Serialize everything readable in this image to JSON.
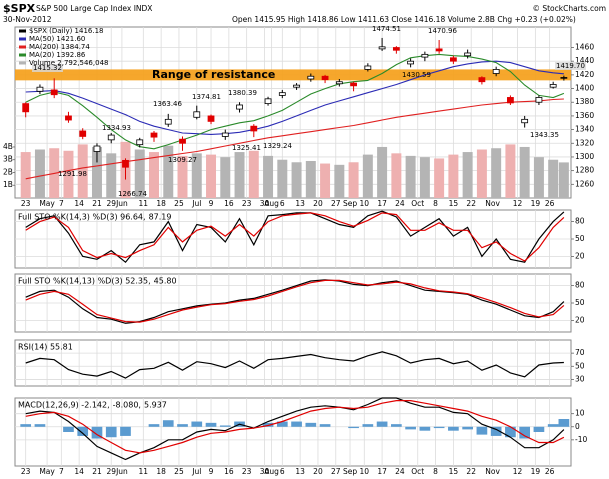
{
  "header": {
    "symbol": "$SPX",
    "name": "S&P 500 Large Cap Index INDX",
    "date": "30-Nov-2012",
    "quote": "Open 1415.95 High 1418.86 Low 1411.63 Close 1416.18 Volume 2.8B Chg +0.23 (+0.02%)",
    "credit": "© StockCharts.com"
  },
  "chart_data": [
    {
      "type": "candlestick",
      "x": [
        0,
        4,
        8,
        12,
        16,
        20,
        24,
        28,
        32,
        36,
        40,
        44,
        48,
        52,
        56,
        60,
        64,
        68,
        72,
        76,
        80,
        84,
        88,
        92,
        96,
        100,
        104,
        108,
        112,
        116,
        120,
        124,
        128,
        132,
        136,
        140,
        144,
        148,
        151
      ],
      "xlim": [
        -3,
        153
      ],
      "xticks": [
        {
          "value": 0,
          "label": "23"
        },
        {
          "value": 6,
          "label": "May"
        },
        {
          "value": 10,
          "label": "7"
        },
        {
          "value": 15,
          "label": "14"
        },
        {
          "value": 20,
          "label": "21"
        },
        {
          "value": 24,
          "label": "29"
        },
        {
          "value": 27,
          "label": "Jun"
        },
        {
          "value": 33,
          "label": "11"
        },
        {
          "value": 38,
          "label": "18"
        },
        {
          "value": 43,
          "label": "25"
        },
        {
          "value": 48,
          "label": "Jul"
        },
        {
          "value": 52,
          "label": "9"
        },
        {
          "value": 57,
          "label": "16"
        },
        {
          "value": 62,
          "label": "23"
        },
        {
          "value": 67,
          "label": "30"
        },
        {
          "value": 69,
          "label": "Aug"
        },
        {
          "value": 72,
          "label": "6"
        },
        {
          "value": 77,
          "label": "13"
        },
        {
          "value": 82,
          "label": "20"
        },
        {
          "value": 87,
          "label": "27"
        },
        {
          "value": 91,
          "label": "Sep"
        },
        {
          "value": 95,
          "label": "10"
        },
        {
          "value": 100,
          "label": "17"
        },
        {
          "value": 105,
          "label": "24"
        },
        {
          "value": 110,
          "label": "Oct"
        },
        {
          "value": 115,
          "label": "8"
        },
        {
          "value": 120,
          "label": "15"
        },
        {
          "value": 125,
          "label": "22"
        },
        {
          "value": 131,
          "label": "Nov"
        },
        {
          "value": 138,
          "label": "12"
        },
        {
          "value": 143,
          "label": "19"
        },
        {
          "value": 147,
          "label": "26"
        }
      ],
      "ylim": [
        1240,
        1490
      ],
      "yticks": [
        1260,
        1280,
        1300,
        1320,
        1340,
        1360,
        1380,
        1400,
        1420,
        1440,
        1460
      ],
      "price": {
        "name": "$SPX (Daily) 1416.18",
        "up_color": "#000000",
        "down_color": "#e00000",
        "open": [
          1378,
          1396,
          1398,
          1360,
          1338,
          1308,
          1325,
          1295,
          1318,
          1335,
          1348,
          1326,
          1358,
          1360,
          1330,
          1370,
          1345,
          1378,
          1390,
          1402,
          1414,
          1418,
          1407,
          1408,
          1428,
          1458,
          1460,
          1436,
          1446,
          1458,
          1445,
          1448,
          1416,
          1422,
          1387,
          1350,
          1380,
          1402,
          1415.95
        ],
        "high": [
          1380,
          1406,
          1415,
          1366,
          1342,
          1320,
          1335,
          1298,
          1328,
          1338,
          1363,
          1330,
          1375,
          1362,
          1340,
          1380,
          1348,
          1388,
          1398,
          1408,
          1422,
          1420,
          1414,
          1410,
          1437,
          1474,
          1462,
          1444,
          1454,
          1471,
          1448,
          1457,
          1418,
          1432,
          1390,
          1360,
          1390,
          1410,
          1418.86
        ],
        "low": [
          1358,
          1392,
          1386,
          1350,
          1326,
          1292,
          1320,
          1267,
          1314,
          1322,
          1344,
          1309,
          1355,
          1348,
          1325,
          1365,
          1329,
          1375,
          1386,
          1398,
          1410,
          1408,
          1403,
          1396,
          1425,
          1455,
          1451,
          1431,
          1440,
          1451,
          1436,
          1444,
          1406,
          1418,
          1376,
          1343,
          1376,
          1400,
          1411.63
        ],
        "close": [
          1366,
          1402,
          1391,
          1354,
          1330,
          1316,
          1332,
          1285,
          1325,
          1329,
          1355,
          1320,
          1366,
          1352,
          1335,
          1376,
          1338,
          1385,
          1394,
          1405,
          1418,
          1413,
          1410,
          1404,
          1433,
          1461,
          1456,
          1440,
          1450,
          1455,
          1440,
          1452,
          1410,
          1428,
          1379,
          1355,
          1387,
          1406,
          1416.18
        ]
      },
      "series": [
        {
          "name": "MA(50) 1421.60",
          "color": "#2b2bb5",
          "values": [
            1395,
            1396,
            1397,
            1393,
            1386,
            1378,
            1370,
            1362,
            1352,
            1345,
            1340,
            1335,
            1334,
            1333,
            1334,
            1336,
            1340,
            1345,
            1352,
            1360,
            1368,
            1376,
            1382,
            1388,
            1394,
            1400,
            1406,
            1413,
            1420,
            1426,
            1432,
            1436,
            1439,
            1440,
            1438,
            1432,
            1426,
            1423,
            1421.6
          ]
        },
        {
          "name": "MA(200) 1384.74",
          "color": "#e02020",
          "values": [
            1268,
            1272,
            1276,
            1280,
            1284,
            1287,
            1290,
            1293,
            1296,
            1299,
            1302,
            1305,
            1308,
            1312,
            1316,
            1320,
            1324,
            1328,
            1331,
            1334,
            1337,
            1340,
            1343,
            1346,
            1350,
            1354,
            1358,
            1361,
            1364,
            1367,
            1370,
            1373,
            1376,
            1378,
            1380,
            1381,
            1382,
            1384,
            1384.74
          ]
        },
        {
          "name": "MA(20) 1392.86",
          "color": "#2a8a2a",
          "values": [
            1380,
            1390,
            1395,
            1390,
            1375,
            1358,
            1340,
            1325,
            1315,
            1312,
            1318,
            1325,
            1332,
            1340,
            1345,
            1350,
            1353,
            1360,
            1368,
            1380,
            1392,
            1400,
            1407,
            1410,
            1412,
            1422,
            1435,
            1445,
            1448,
            1450,
            1448,
            1447,
            1443,
            1438,
            1425,
            1405,
            1390,
            1387,
            1392.86
          ]
        }
      ],
      "volume": {
        "name": "Volume 2,792,546,048",
        "color": "#b4b4b4",
        "down_color": "#eeb0b0",
        "values": [
          3.6,
          3.8,
          3.9,
          3.7,
          4.2,
          4.0,
          3.5,
          4.4,
          3.8,
          3.6,
          4.1,
          3.3,
          3.5,
          3.4,
          3.2,
          3.6,
          3.7,
          3.3,
          3.0,
          2.8,
          2.9,
          2.7,
          2.6,
          2.8,
          3.4,
          4.0,
          3.5,
          3.3,
          3.2,
          3.1,
          3.4,
          3.6,
          3.8,
          3.9,
          4.2,
          4.0,
          3.2,
          3.0,
          2.79
        ]
      },
      "volume_lim": [
        0,
        13.4
      ],
      "volume_ticks": [
        {
          "value": 1,
          "label": "1B"
        },
        {
          "value": 2,
          "label": "2B"
        },
        {
          "value": 3,
          "label": "3B"
        },
        {
          "value": 4,
          "label": "4B"
        }
      ],
      "band": {
        "label": "Range of resistance",
        "range": [
          1412,
          1428
        ],
        "color": "#f5a01a",
        "text_color": "#2020a0"
      },
      "annotations": [
        "1474.51",
        "1470.96",
        "1430.59",
        "1419.70",
        "1415.32",
        "1363.46",
        "1374.81",
        "1380.39",
        "1334.93",
        "1325.41",
        "1329.24",
        "1309.27",
        "1291.98",
        "1266.74",
        "1343.35"
      ]
    },
    {
      "type": "line",
      "ylim": [
        0,
        100
      ],
      "yticks": [
        20,
        50,
        80
      ],
      "title_parts": [
        {
          "text": "Full STO %K(14,3) %D(3) 96.64,",
          "color": "#000000"
        },
        {
          "text": "87.19",
          "color": "#e00000"
        }
      ],
      "series": [
        {
          "color": "#000000",
          "values": [
            70,
            85,
            90,
            60,
            20,
            15,
            30,
            10,
            40,
            45,
            80,
            30,
            75,
            70,
            45,
            85,
            40,
            90,
            92,
            95,
            95,
            85,
            75,
            70,
            90,
            98,
            88,
            55,
            70,
            85,
            55,
            70,
            20,
            50,
            15,
            10,
            50,
            80,
            96.64
          ]
        },
        {
          "color": "#e00000",
          "values": [
            65,
            80,
            88,
            70,
            30,
            18,
            25,
            18,
            30,
            40,
            70,
            45,
            65,
            72,
            55,
            75,
            55,
            80,
            90,
            93,
            95,
            90,
            80,
            72,
            82,
            95,
            92,
            65,
            65,
            78,
            65,
            65,
            35,
            45,
            25,
            12,
            35,
            70,
            87.19
          ]
        }
      ]
    },
    {
      "type": "line",
      "ylim": [
        0,
        100
      ],
      "yticks": [
        20,
        50,
        80
      ],
      "title_parts": [
        {
          "text": "Full STO %K(14,13) %D(3) 52.35,",
          "color": "#000000"
        },
        {
          "text": "45.80",
          "color": "#e00000"
        }
      ],
      "series": [
        {
          "color": "#000000",
          "values": [
            60,
            70,
            72,
            60,
            40,
            25,
            22,
            15,
            18,
            25,
            35,
            40,
            45,
            48,
            50,
            55,
            58,
            65,
            72,
            80,
            88,
            90,
            88,
            82,
            80,
            85,
            88,
            80,
            72,
            70,
            68,
            65,
            55,
            48,
            38,
            28,
            25,
            35,
            52.35
          ]
        },
        {
          "color": "#e00000",
          "values": [
            55,
            65,
            70,
            65,
            48,
            30,
            24,
            18,
            17,
            22,
            30,
            38,
            43,
            47,
            49,
            53,
            56,
            62,
            70,
            78,
            85,
            89,
            89,
            85,
            81,
            83,
            86,
            83,
            76,
            71,
            69,
            66,
            59,
            51,
            42,
            32,
            26,
            30,
            45.8
          ]
        }
      ]
    },
    {
      "type": "line",
      "ylim": [
        20,
        90
      ],
      "yticks": [
        30,
        50,
        70
      ],
      "title_parts": [
        {
          "text": "RSI(14) 55.81",
          "color": "#000000"
        }
      ],
      "series": [
        {
          "color": "#000000",
          "values": [
            55,
            62,
            60,
            45,
            38,
            35,
            42,
            32,
            45,
            47,
            56,
            44,
            57,
            54,
            48,
            58,
            47,
            60,
            62,
            65,
            68,
            63,
            60,
            58,
            66,
            72,
            66,
            55,
            60,
            62,
            54,
            58,
            44,
            52,
            40,
            34,
            52,
            55,
            55.81
          ]
        }
      ]
    },
    {
      "type": "line",
      "ylim": [
        -30,
        22
      ],
      "yticks": [
        -10,
        0,
        10
      ],
      "title_parts": [
        {
          "text": "MACD(12,26,9) -2.142,",
          "color": "#000000"
        },
        {
          "text": "-8.080,",
          "color": "#e00000"
        },
        {
          "text": "5.937",
          "color": "#2a7ab8"
        }
      ],
      "series": [
        {
          "type": "bar",
          "color": "#5b9bd0",
          "values": [
            2,
            2,
            0,
            -4,
            -7,
            -9,
            -8,
            -7,
            0,
            2,
            5,
            2,
            4,
            3,
            1,
            4,
            0,
            3,
            4,
            4,
            3,
            2,
            0,
            -1,
            2,
            4,
            2,
            -2,
            -3,
            -1,
            -3,
            -2,
            -6,
            -7,
            -8,
            -9,
            -4,
            2,
            5.937
          ]
        },
        {
          "color": "#000000",
          "values": [
            10,
            12,
            11,
            4,
            -5,
            -15,
            -20,
            -25,
            -20,
            -16,
            -10,
            -10,
            -4,
            -2,
            -3,
            2,
            -1,
            4,
            8,
            12,
            15,
            16,
            15,
            13,
            17,
            22,
            22,
            18,
            15,
            15,
            11,
            10,
            2,
            -2,
            -8,
            -16,
            -16,
            -10,
            -2.142
          ]
        },
        {
          "color": "#e00000",
          "values": [
            8,
            10,
            11,
            8,
            2,
            -6,
            -12,
            -18,
            -20,
            -18,
            -15,
            -12,
            -8,
            -5,
            -4,
            -2,
            -1,
            1,
            4,
            8,
            12,
            14,
            15,
            14,
            15,
            18,
            20,
            20,
            18,
            16,
            14,
            12,
            8,
            5,
            0,
            -7,
            -12,
            -12,
            -8.08
          ]
        }
      ]
    }
  ]
}
